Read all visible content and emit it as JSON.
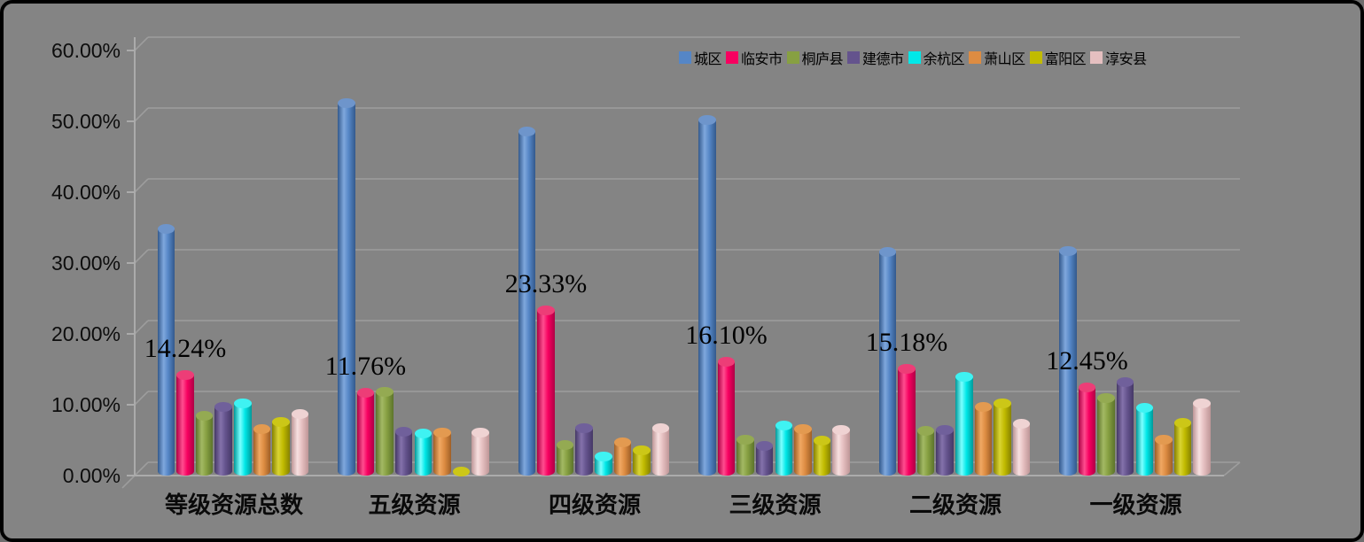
{
  "chart_data": {
    "type": "bar",
    "subtype": "3d-cylinder",
    "title": "",
    "xlabel": "",
    "ylabel": "",
    "background_color": "#848484",
    "grid": true,
    "legend_position": "top-right",
    "ylim": [
      0,
      60
    ],
    "ytick_step": 10,
    "ytick_labels_top_down": [
      "60.00%",
      "50.00%",
      "40.00%",
      "30.00%",
      "20.00%",
      "10.00%",
      "0.00%"
    ],
    "categories": [
      "等级资源总数",
      "五级资源",
      "四级资源",
      "三级资源",
      "二级资源",
      "一级资源"
    ],
    "series": [
      {
        "name": "城区",
        "values": [
          34.9,
          52.6,
          48.6,
          50.3,
          31.6,
          31.8
        ],
        "color": {
          "light": "#7FA8DD",
          "mid": "#5586C6",
          "dark": "#33598C",
          "cap": "#6E95CB"
        }
      },
      {
        "name": "临安市",
        "values": [
          14.24,
          11.76,
          23.33,
          16.1,
          15.18,
          12.45
        ],
        "color": {
          "light": "#FF4D8F",
          "mid": "#F70060",
          "dark": "#AE0045",
          "cap": "#ED3D77"
        }
      },
      {
        "name": "桐庐县",
        "values": [
          8.5,
          11.9,
          4.4,
          5.1,
          6.4,
          11.0
        ],
        "color": {
          "light": "#A3B964",
          "mid": "#87A042",
          "dark": "#5C742B",
          "cap": "#94AA52"
        }
      },
      {
        "name": "建德市",
        "values": [
          9.7,
          6.2,
          6.7,
          4.3,
          6.5,
          13.3
        ],
        "color": {
          "light": "#8472AB",
          "mid": "#64538D",
          "dark": "#453866",
          "cap": "#70609B"
        }
      },
      {
        "name": "余杭区",
        "values": [
          10.3,
          6.0,
          2.7,
          7.1,
          14.0,
          9.6
        ],
        "color": {
          "light": "#7CFFFF",
          "mid": "#00E8E8",
          "dark": "#009999",
          "cap": "#3FF2F2"
        }
      },
      {
        "name": "萧山区",
        "values": [
          6.6,
          6.1,
          4.7,
          6.6,
          9.8,
          5.1
        ],
        "color": {
          "light": "#F0A863",
          "mid": "#DD8C42",
          "dark": "#9F5F26",
          "cap": "#E39A50"
        }
      },
      {
        "name": "富阳区",
        "values": [
          7.6,
          0.6,
          3.6,
          5.0,
          10.3,
          7.5
        ],
        "color": {
          "light": "#D9D434",
          "mid": "#C1BB00",
          "dark": "#878200",
          "cap": "#CCC717"
        }
      },
      {
        "name": "淳安县",
        "values": [
          8.7,
          6.1,
          6.8,
          6.5,
          7.4,
          10.3
        ],
        "color": {
          "light": "#F7E0E0",
          "mid": "#E5BFC0",
          "dark": "#BE9697",
          "cap": "#EFD3D3"
        }
      }
    ],
    "data_labels": {
      "series": "临安市",
      "labels": [
        "14.24%",
        "11.76%",
        "23.33%",
        "16.10%",
        "15.18%",
        "12.45%"
      ]
    }
  }
}
